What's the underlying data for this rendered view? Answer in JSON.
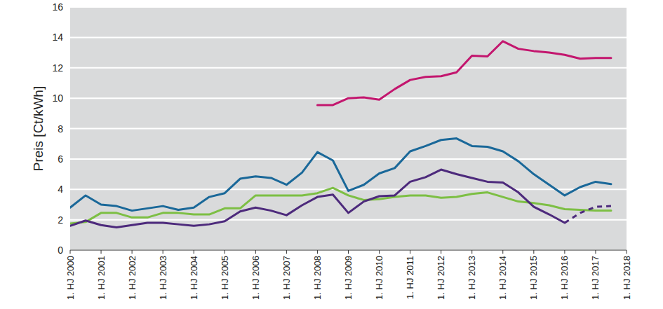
{
  "chart_data": {
    "type": "line",
    "y_label": "Preis [Ct/kWh]",
    "categories": [
      "1. HJ 2000",
      null,
      "1. HJ 2001",
      null,
      "1. HJ 2002",
      null,
      "1. HJ 2003",
      null,
      "1. HJ 2004",
      null,
      "1. HJ 2005",
      null,
      "1. HJ 2006",
      null,
      "1. HJ 2007",
      null,
      "1. HJ 2008",
      null,
      "1. HJ 2009",
      null,
      "1. HJ 2010",
      null,
      "1. HJ 2011",
      null,
      "1. HJ 2012",
      null,
      "1. HJ 2013",
      null,
      "1. HJ 2014",
      null,
      "1. HJ 2015",
      null,
      "1. HJ 2016",
      null,
      "1. HJ 2017",
      null,
      "1. HJ 2018"
    ],
    "ylim": [
      0,
      16
    ],
    "yticks": [
      0,
      2,
      4,
      6,
      8,
      10,
      12,
      14,
      16
    ],
    "grid": true,
    "series": [
      {
        "color": "#c3166e",
        "line_style": "solid",
        "values": [
          null,
          null,
          null,
          null,
          null,
          null,
          null,
          null,
          null,
          null,
          null,
          null,
          null,
          null,
          null,
          null,
          9.55,
          9.55,
          10.0,
          10.05,
          9.9,
          10.6,
          11.2,
          11.4,
          11.45,
          11.7,
          12.8,
          12.75,
          13.75,
          13.25,
          13.1,
          13.0,
          12.85,
          12.6,
          12.65,
          12.65,
          null
        ]
      },
      {
        "color": "#1a6899",
        "line_style": "solid",
        "values": [
          2.8,
          3.6,
          3.0,
          2.9,
          2.6,
          2.75,
          2.9,
          2.65,
          2.8,
          3.5,
          3.75,
          4.7,
          4.85,
          4.75,
          4.3,
          5.1,
          6.45,
          5.9,
          3.9,
          4.3,
          5.05,
          5.4,
          6.5,
          6.85,
          7.25,
          7.35,
          6.85,
          6.8,
          6.5,
          5.85,
          5.0,
          4.3,
          3.6,
          4.15,
          4.5,
          4.35,
          null
        ]
      },
      {
        "color": "#7dbf44",
        "line_style": "solid",
        "values": [
          1.75,
          1.85,
          2.45,
          2.45,
          2.15,
          2.15,
          2.45,
          2.45,
          2.35,
          2.35,
          2.75,
          2.75,
          3.6,
          3.6,
          3.6,
          3.6,
          3.75,
          4.1,
          3.6,
          3.3,
          3.35,
          3.5,
          3.6,
          3.6,
          3.45,
          3.5,
          3.7,
          3.8,
          3.5,
          3.2,
          3.1,
          2.95,
          2.7,
          2.65,
          2.6,
          2.6,
          null
        ]
      },
      {
        "color": "#4d2a7c",
        "line_style": "solid",
        "values": [
          1.6,
          1.95,
          1.65,
          1.5,
          1.65,
          1.8,
          1.8,
          1.7,
          1.6,
          1.7,
          1.9,
          2.55,
          2.8,
          2.6,
          2.3,
          2.95,
          3.5,
          3.65,
          2.45,
          3.2,
          3.55,
          3.6,
          4.5,
          4.8,
          5.3,
          5.0,
          4.75,
          4.5,
          4.45,
          3.8,
          2.85,
          2.35,
          1.8,
          null,
          null,
          null,
          null
        ]
      },
      {
        "color": "#4d2a7c",
        "line_style": "dashed",
        "values": [
          null,
          null,
          null,
          null,
          null,
          null,
          null,
          null,
          null,
          null,
          null,
          null,
          null,
          null,
          null,
          null,
          null,
          null,
          null,
          null,
          null,
          null,
          null,
          null,
          null,
          null,
          null,
          null,
          null,
          null,
          null,
          null,
          1.8,
          2.45,
          2.85,
          2.9,
          null
        ]
      }
    ]
  }
}
